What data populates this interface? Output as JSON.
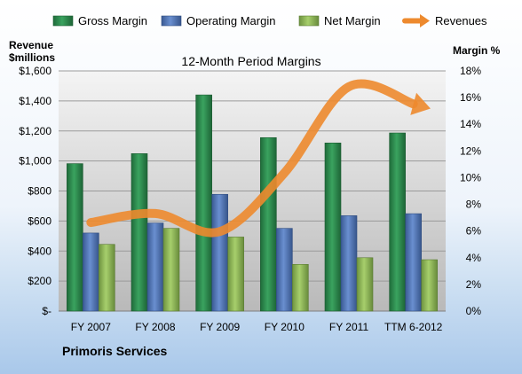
{
  "chart_data": {
    "type": "bar",
    "title": "12-Month Period Margins",
    "company": "Primoris Services",
    "y_left_label": [
      "Revenue",
      "$millions"
    ],
    "y_right_label": "Margin %",
    "categories": [
      "FY 2007",
      "FY 2008",
      "FY 2009",
      "FY 2010",
      "FY 2011",
      "TTM 6-2012"
    ],
    "y_left_ticks": [
      "$-",
      "$200",
      "$400",
      "$600",
      "$800",
      "$1,000",
      "$1,200",
      "$1,400",
      "$1,600"
    ],
    "y_right_ticks": [
      "0%",
      "2%",
      "4%",
      "6%",
      "8%",
      "10%",
      "12%",
      "14%",
      "16%",
      "18%"
    ],
    "ylim_left": [
      0,
      1600
    ],
    "ylim_right": [
      0,
      18
    ],
    "grid": true,
    "legend_position": "top",
    "series": [
      {
        "name": "Gross Margin",
        "axis": "right",
        "kind": "bar",
        "color": "#2e8b4e",
        "values": [
          11.05,
          11.8,
          16.2,
          13.0,
          12.6,
          13.35
        ]
      },
      {
        "name": "Operating Margin",
        "axis": "right",
        "kind": "bar",
        "color": "#4f74b8",
        "values": [
          5.85,
          6.6,
          8.75,
          6.2,
          7.15,
          7.3
        ]
      },
      {
        "name": "Net Margin",
        "axis": "right",
        "kind": "bar",
        "color": "#8db854",
        "values": [
          5.0,
          6.2,
          5.55,
          3.5,
          4.0,
          3.85
        ]
      },
      {
        "name": "Revenues",
        "axis": "left",
        "kind": "line",
        "color": "#ed8a2e",
        "values": [
          590,
          650,
          530,
          920,
          1495,
          1380
        ]
      }
    ]
  }
}
